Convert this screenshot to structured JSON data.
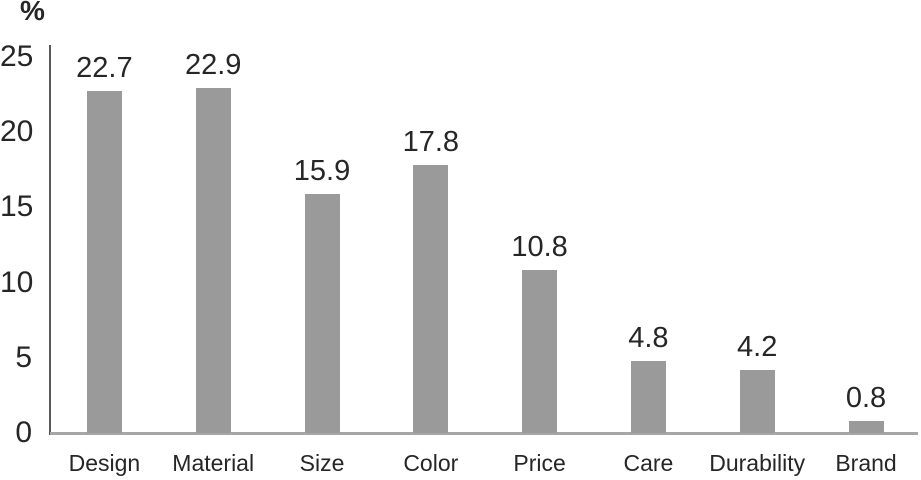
{
  "chart_data": {
    "type": "bar",
    "title": "",
    "xlabel": "",
    "ylabel": "%",
    "categories": [
      "Design",
      "Material",
      "Size",
      "Color",
      "Price",
      "Care",
      "Durability",
      "Brand"
    ],
    "values": [
      22.7,
      22.9,
      15.9,
      17.8,
      10.8,
      4.8,
      4.2,
      0.8
    ],
    "value_labels": [
      "22.7",
      "22.9",
      "15.9",
      "17.8",
      "10.8",
      "4.8",
      "4.2",
      "0.8"
    ],
    "ylim": [
      0,
      25
    ],
    "yticks": [
      0,
      5,
      10,
      15,
      20,
      25
    ],
    "ytick_labels": [
      "0",
      "5",
      "10",
      "15",
      "20",
      "25"
    ],
    "grid": false,
    "legend": false,
    "bar_color": "#9a9a9a",
    "x_axis_line_color": "#a6a6a6",
    "y_axis_line_color": "#595959",
    "text_color": "#262626",
    "background_color": "#ffffff"
  }
}
